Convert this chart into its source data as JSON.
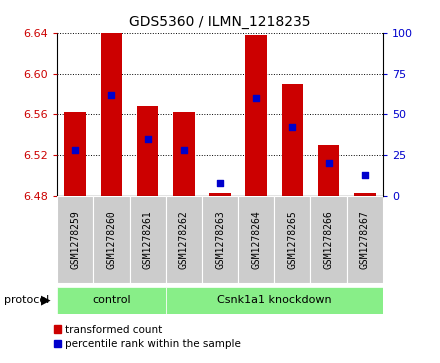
{
  "title": "GDS5360 / ILMN_1218235",
  "samples": [
    "GSM1278259",
    "GSM1278260",
    "GSM1278261",
    "GSM1278262",
    "GSM1278263",
    "GSM1278264",
    "GSM1278265",
    "GSM1278266",
    "GSM1278267"
  ],
  "transformed_counts": [
    6.562,
    6.64,
    6.568,
    6.562,
    6.483,
    6.638,
    6.59,
    6.53,
    6.483
  ],
  "percentile_ranks": [
    28,
    62,
    35,
    28,
    8,
    60,
    42,
    20,
    13
  ],
  "bar_bottom": 6.48,
  "ylim": [
    6.48,
    6.64
  ],
  "yticks": [
    6.48,
    6.52,
    6.56,
    6.6,
    6.64
  ],
  "y2ticks": [
    0,
    25,
    50,
    75,
    100
  ],
  "bar_color": "#cc0000",
  "dot_color": "#0000cc",
  "n_control": 3,
  "protocol_label": "protocol",
  "control_label": "control",
  "knockdown_label": "Csnk1a1 knockdown",
  "legend_red_label": "transformed count",
  "legend_blue_label": "percentile rank within the sample",
  "group_color": "#88ee88",
  "sample_box_color": "#cccccc",
  "tick_label_color_left": "#cc0000",
  "tick_label_color_right": "#0000cc",
  "bar_width": 0.6,
  "dot_size": 25
}
